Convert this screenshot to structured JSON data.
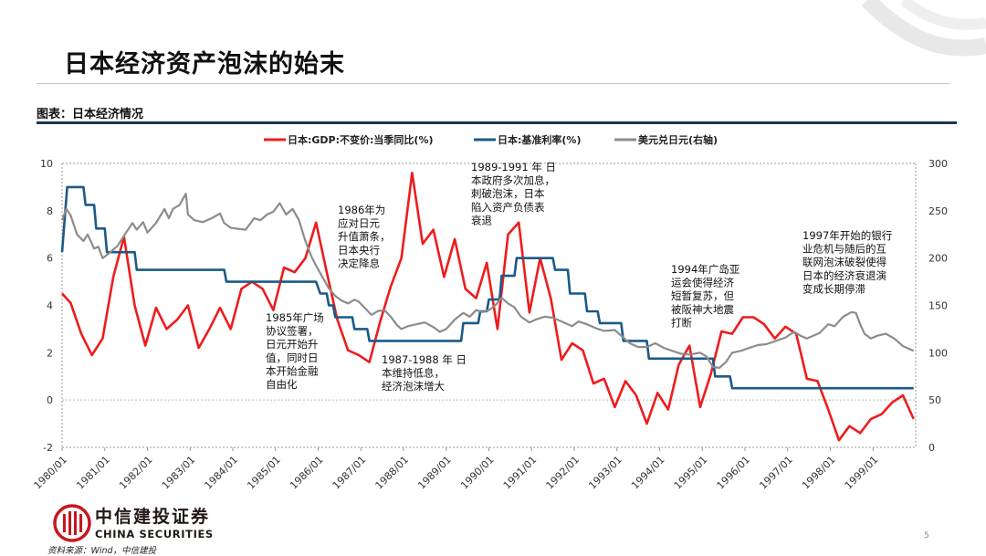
{
  "page": {
    "title": "日本经济资产泡沫的始末",
    "figure_label": "图表：日本经济情况",
    "source": "资料来源：Wind，中信建投",
    "page_number": "5"
  },
  "logo": {
    "name_cn": "中信建投证券",
    "name_en": "CHINA SECURITIES"
  },
  "colors": {
    "gdp": "#ee1c1c",
    "rate": "#1b5a87",
    "fx": "#8c8c8c",
    "title_rule": "#1c3550"
  },
  "chart_data": {
    "type": "line",
    "legend_position": "top",
    "x_tick_labels": [
      "1980/01",
      "1981/01",
      "1982/01",
      "1983/01",
      "1984/01",
      "1985/01",
      "1986/01",
      "1987/01",
      "1988/01",
      "1989/01",
      "1990/01",
      "1991/01",
      "1992/01",
      "1993/01",
      "1994/01",
      "1995/01",
      "1996/01",
      "1997/01",
      "1998/01",
      "1999/01"
    ],
    "x_range": [
      1980.0,
      2000.0
    ],
    "y_left": {
      "range": [
        -2,
        10
      ],
      "ticks": [
        -2,
        0,
        2,
        4,
        6,
        8,
        10
      ]
    },
    "y_right": {
      "range": [
        0,
        300
      ],
      "ticks": [
        0,
        50,
        100,
        150,
        200,
        250,
        300
      ]
    },
    "series": [
      {
        "name": "日本:GDP:不变价:当季同比(%)",
        "axis": "left",
        "color": "#ee1c1c",
        "points": [
          [
            1980.0,
            4.5
          ],
          [
            1980.2,
            4.1
          ],
          [
            1980.45,
            2.8
          ],
          [
            1980.7,
            1.9
          ],
          [
            1980.95,
            2.6
          ],
          [
            1981.2,
            5.2
          ],
          [
            1981.45,
            6.9
          ],
          [
            1981.7,
            4.0
          ],
          [
            1981.95,
            2.3
          ],
          [
            1982.2,
            3.9
          ],
          [
            1982.45,
            3.0
          ],
          [
            1982.7,
            3.4
          ],
          [
            1982.95,
            4.0
          ],
          [
            1983.2,
            2.2
          ],
          [
            1983.45,
            3.0
          ],
          [
            1983.7,
            3.9
          ],
          [
            1983.95,
            3.0
          ],
          [
            1984.2,
            4.7
          ],
          [
            1984.45,
            5.0
          ],
          [
            1984.7,
            4.7
          ],
          [
            1984.95,
            3.8
          ],
          [
            1985.2,
            5.6
          ],
          [
            1985.45,
            5.4
          ],
          [
            1985.7,
            6.0
          ],
          [
            1985.95,
            7.5
          ],
          [
            1986.2,
            5.4
          ],
          [
            1986.45,
            3.4
          ],
          [
            1986.7,
            2.1
          ],
          [
            1986.95,
            1.9
          ],
          [
            1987.2,
            1.6
          ],
          [
            1987.45,
            3.3
          ],
          [
            1987.7,
            4.8
          ],
          [
            1987.95,
            6.0
          ],
          [
            1988.2,
            9.6
          ],
          [
            1988.45,
            6.6
          ],
          [
            1988.7,
            7.2
          ],
          [
            1988.95,
            5.2
          ],
          [
            1989.2,
            6.8
          ],
          [
            1989.45,
            4.7
          ],
          [
            1989.7,
            4.3
          ],
          [
            1989.95,
            5.8
          ],
          [
            1990.2,
            3.0
          ],
          [
            1990.45,
            7.0
          ],
          [
            1990.7,
            7.5
          ],
          [
            1990.95,
            3.7
          ],
          [
            1991.2,
            6.0
          ],
          [
            1991.45,
            4.3
          ],
          [
            1991.7,
            1.7
          ],
          [
            1991.95,
            2.4
          ],
          [
            1992.2,
            2.1
          ],
          [
            1992.45,
            0.7
          ],
          [
            1992.7,
            0.9
          ],
          [
            1992.95,
            -0.3
          ],
          [
            1993.2,
            0.8
          ],
          [
            1993.45,
            0.2
          ],
          [
            1993.7,
            -1.0
          ],
          [
            1993.95,
            0.3
          ],
          [
            1994.2,
            -0.4
          ],
          [
            1994.45,
            1.5
          ],
          [
            1994.7,
            2.3
          ],
          [
            1994.95,
            -0.3
          ],
          [
            1995.2,
            1.1
          ],
          [
            1995.45,
            2.9
          ],
          [
            1995.7,
            2.8
          ],
          [
            1995.95,
            3.5
          ],
          [
            1996.2,
            3.5
          ],
          [
            1996.45,
            3.2
          ],
          [
            1996.7,
            2.6
          ],
          [
            1996.95,
            3.1
          ],
          [
            1997.2,
            2.8
          ],
          [
            1997.45,
            0.9
          ],
          [
            1997.7,
            0.8
          ],
          [
            1997.95,
            -0.4
          ],
          [
            1998.2,
            -1.7
          ],
          [
            1998.45,
            -1.1
          ],
          [
            1998.7,
            -1.4
          ],
          [
            1998.95,
            -0.8
          ],
          [
            1999.2,
            -0.6
          ],
          [
            1999.45,
            -0.1
          ],
          [
            1999.7,
            0.2
          ],
          [
            1999.95,
            -0.8
          ]
        ]
      },
      {
        "name": "日本:基准利率(%)",
        "axis": "left",
        "color": "#1b5a87",
        "points": [
          [
            1980.0,
            6.25
          ],
          [
            1980.12,
            9.0
          ],
          [
            1980.5,
            9.0
          ],
          [
            1980.55,
            8.25
          ],
          [
            1980.75,
            8.25
          ],
          [
            1980.8,
            7.25
          ],
          [
            1981.0,
            7.25
          ],
          [
            1981.05,
            6.25
          ],
          [
            1981.7,
            6.25
          ],
          [
            1981.75,
            5.5
          ],
          [
            1983.8,
            5.5
          ],
          [
            1983.85,
            5.0
          ],
          [
            1985.95,
            5.0
          ],
          [
            1986.05,
            4.5
          ],
          [
            1986.2,
            4.5
          ],
          [
            1986.25,
            4.0
          ],
          [
            1986.35,
            4.0
          ],
          [
            1986.4,
            3.5
          ],
          [
            1986.8,
            3.5
          ],
          [
            1986.85,
            3.0
          ],
          [
            1987.15,
            3.0
          ],
          [
            1987.2,
            2.5
          ],
          [
            1989.35,
            2.5
          ],
          [
            1989.4,
            3.25
          ],
          [
            1989.75,
            3.25
          ],
          [
            1989.8,
            3.75
          ],
          [
            1989.95,
            3.75
          ],
          [
            1990.0,
            4.25
          ],
          [
            1990.25,
            4.25
          ],
          [
            1990.3,
            5.25
          ],
          [
            1990.6,
            5.25
          ],
          [
            1990.65,
            6.0
          ],
          [
            1991.5,
            6.0
          ],
          [
            1991.55,
            5.5
          ],
          [
            1991.85,
            5.5
          ],
          [
            1991.9,
            4.5
          ],
          [
            1992.25,
            4.5
          ],
          [
            1992.3,
            3.75
          ],
          [
            1992.55,
            3.75
          ],
          [
            1992.6,
            3.25
          ],
          [
            1993.1,
            3.25
          ],
          [
            1993.15,
            2.5
          ],
          [
            1993.7,
            2.5
          ],
          [
            1993.75,
            1.75
          ],
          [
            1995.25,
            1.75
          ],
          [
            1995.3,
            1.0
          ],
          [
            1995.65,
            1.0
          ],
          [
            1995.7,
            0.5
          ],
          [
            1999.95,
            0.5
          ]
        ]
      },
      {
        "name": "美元兑日元(右轴)",
        "axis": "right",
        "color": "#8c8c8c",
        "points": [
          [
            1980.0,
            240
          ],
          [
            1980.1,
            252
          ],
          [
            1980.2,
            245
          ],
          [
            1980.35,
            225
          ],
          [
            1980.5,
            218
          ],
          [
            1980.6,
            225
          ],
          [
            1980.75,
            210
          ],
          [
            1980.85,
            212
          ],
          [
            1980.95,
            200
          ],
          [
            1981.1,
            205
          ],
          [
            1981.3,
            213
          ],
          [
            1981.5,
            227
          ],
          [
            1981.65,
            237
          ],
          [
            1981.75,
            230
          ],
          [
            1981.9,
            238
          ],
          [
            1982.0,
            227
          ],
          [
            1982.2,
            237
          ],
          [
            1982.4,
            252
          ],
          [
            1982.5,
            242
          ],
          [
            1982.6,
            252
          ],
          [
            1982.75,
            256
          ],
          [
            1982.9,
            268
          ],
          [
            1982.95,
            246
          ],
          [
            1983.1,
            240
          ],
          [
            1983.3,
            238
          ],
          [
            1983.5,
            242
          ],
          [
            1983.7,
            247
          ],
          [
            1983.8,
            237
          ],
          [
            1983.95,
            232
          ],
          [
            1984.1,
            231
          ],
          [
            1984.3,
            230
          ],
          [
            1984.5,
            242
          ],
          [
            1984.65,
            240
          ],
          [
            1984.8,
            246
          ],
          [
            1984.95,
            249
          ],
          [
            1985.1,
            258
          ],
          [
            1985.25,
            246
          ],
          [
            1985.4,
            252
          ],
          [
            1985.55,
            240
          ],
          [
            1985.7,
            218
          ],
          [
            1985.85,
            201
          ],
          [
            1985.95,
            192
          ],
          [
            1986.1,
            180
          ],
          [
            1986.25,
            168
          ],
          [
            1986.4,
            160
          ],
          [
            1986.55,
            155
          ],
          [
            1986.7,
            152
          ],
          [
            1986.85,
            156
          ],
          [
            1986.95,
            154
          ],
          [
            1987.1,
            147
          ],
          [
            1987.25,
            140
          ],
          [
            1987.4,
            144
          ],
          [
            1987.55,
            145
          ],
          [
            1987.7,
            138
          ],
          [
            1987.85,
            129
          ],
          [
            1987.95,
            125
          ],
          [
            1988.1,
            128
          ],
          [
            1988.3,
            130
          ],
          [
            1988.5,
            132
          ],
          [
            1988.7,
            127
          ],
          [
            1988.85,
            122
          ],
          [
            1989.0,
            125
          ],
          [
            1989.2,
            135
          ],
          [
            1989.4,
            142
          ],
          [
            1989.55,
            138
          ],
          [
            1989.7,
            145
          ],
          [
            1989.85,
            143
          ],
          [
            1990.0,
            145
          ],
          [
            1990.15,
            150
          ],
          [
            1990.3,
            158
          ],
          [
            1990.45,
            152
          ],
          [
            1990.6,
            148
          ],
          [
            1990.75,
            138
          ],
          [
            1990.95,
            132
          ],
          [
            1991.1,
            135
          ],
          [
            1991.3,
            138
          ],
          [
            1991.5,
            137
          ],
          [
            1991.7,
            133
          ],
          [
            1991.95,
            128
          ],
          [
            1992.1,
            133
          ],
          [
            1992.3,
            130
          ],
          [
            1992.5,
            126
          ],
          [
            1992.7,
            123
          ],
          [
            1992.95,
            124
          ],
          [
            1993.1,
            118
          ],
          [
            1993.3,
            110
          ],
          [
            1993.5,
            106
          ],
          [
            1993.7,
            106
          ],
          [
            1993.9,
            110
          ],
          [
            1994.1,
            105
          ],
          [
            1994.3,
            102
          ],
          [
            1994.5,
            99
          ],
          [
            1994.7,
            98
          ],
          [
            1994.95,
            100
          ],
          [
            1995.1,
            96
          ],
          [
            1995.25,
            85
          ],
          [
            1995.4,
            84
          ],
          [
            1995.55,
            90
          ],
          [
            1995.7,
            100
          ],
          [
            1995.9,
            102
          ],
          [
            1996.1,
            105
          ],
          [
            1996.3,
            108
          ],
          [
            1996.5,
            109
          ],
          [
            1996.7,
            112
          ],
          [
            1996.95,
            116
          ],
          [
            1997.15,
            122
          ],
          [
            1997.3,
            118
          ],
          [
            1997.45,
            115
          ],
          [
            1997.6,
            118
          ],
          [
            1997.75,
            121
          ],
          [
            1997.95,
            130
          ],
          [
            1998.1,
            128
          ],
          [
            1998.3,
            138
          ],
          [
            1998.5,
            143
          ],
          [
            1998.6,
            142
          ],
          [
            1998.7,
            130
          ],
          [
            1998.8,
            120
          ],
          [
            1998.95,
            115
          ],
          [
            1999.1,
            118
          ],
          [
            1999.3,
            120
          ],
          [
            1999.5,
            115
          ],
          [
            1999.7,
            107
          ],
          [
            1999.85,
            104
          ],
          [
            1999.95,
            102
          ]
        ]
      }
    ],
    "annotations": [
      {
        "id": "a1985",
        "text": [
          "1985年广场",
          "协议签署，",
          "日元开始升",
          "值，同时日",
          "本开始金融",
          "自由化"
        ]
      },
      {
        "id": "a1986",
        "text": [
          "1986年为",
          "应对日元",
          "升值萧条，",
          "日本央行",
          "决定降息"
        ]
      },
      {
        "id": "a1987",
        "text": [
          "1987-1988 年 日",
          "本维持低息，",
          "经济泡沫增大"
        ]
      },
      {
        "id": "a1989",
        "text": [
          "1989-1991 年 日",
          "本政府多次加息，",
          "刺破泡沫，日本",
          "陷入资产负债表",
          "衰退"
        ]
      },
      {
        "id": "a1994",
        "text": [
          "1994年广岛亚",
          "运会使得经济",
          "短暂复苏，但",
          "被阪神大地震",
          "打断"
        ]
      },
      {
        "id": "a1997",
        "text": [
          "1997年开始的银行",
          "业危机与随后的互",
          "联网泡沫破裂使得",
          "日本的经济衰退演",
          "变成长期停滞"
        ]
      }
    ]
  }
}
